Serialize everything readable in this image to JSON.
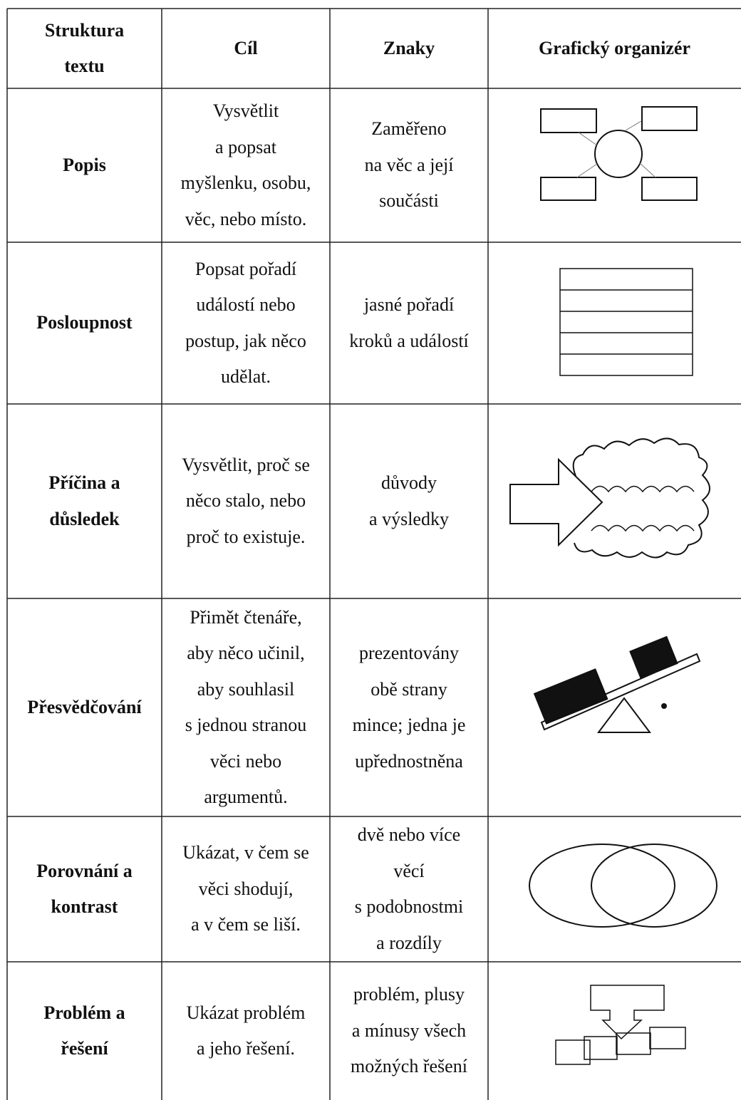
{
  "table": {
    "header": [
      [
        "Struktura",
        "textu"
      ],
      [
        "Cíl"
      ],
      [
        "Znaky"
      ],
      [
        "Grafický organizér"
      ]
    ],
    "rows": [
      [
        [
          "Popis"
        ],
        [
          "Vysvětlit",
          "a popsat",
          "myšlenku, osobu,",
          "věc, nebo místo."
        ],
        [
          "Zaměřeno",
          "na věc a její",
          "součásti"
        ]
      ],
      [
        [
          "Posloupnost"
        ],
        [
          "Popsat pořadí",
          "událostí nebo",
          "postup, jak něco",
          "udělat."
        ],
        [
          "jasné pořadí",
          "kroků a událostí"
        ]
      ],
      [
        [
          "Příčina a",
          "důsledek"
        ],
        [
          "Vysvětlit, proč se",
          "něco stalo, nebo",
          "proč to existuje."
        ],
        [
          "důvody",
          "a výsledky"
        ]
      ],
      [
        [
          "Přesvědčování"
        ],
        [
          "Přimět čtenáře,",
          "aby něco učinil,",
          "aby souhlasil",
          "s jednou stranou",
          "věci nebo",
          "argumentů."
        ],
        [
          "prezentovány",
          "obě strany",
          "mince; jedna je",
          "upřednostněna"
        ]
      ],
      [
        [
          "Porovnání a",
          "kontrast"
        ],
        [
          "Ukázat, v čem se",
          "věci shodují,",
          "a v čem se liší."
        ],
        [
          "dvě nebo více",
          "věcí",
          "s podobnostmi",
          "a rozdíly"
        ]
      ],
      [
        [
          "Problém a",
          "řešení"
        ],
        [
          "Ukázat problém",
          "a jeho řešení."
        ],
        [
          "problém, plusy",
          "a mínusy všech",
          "možných řešení"
        ]
      ]
    ]
  }
}
